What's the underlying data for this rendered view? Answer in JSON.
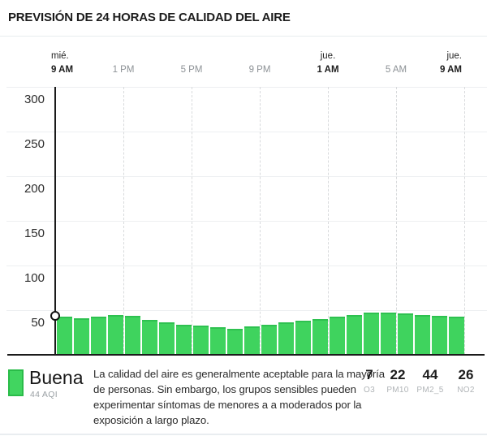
{
  "header": {
    "title": "PREVISIÓN DE 24 HORAS DE CALIDAD DEL AIRE"
  },
  "chart_data": {
    "type": "bar",
    "title": "PREVISIÓN DE 24 HORAS DE CALIDAD DEL AIRE",
    "unit": "AQI",
    "ylim": [
      0,
      300
    ],
    "yticks": [
      50,
      100,
      150,
      200,
      250,
      300
    ],
    "grid": "horizontal solid, vertical dashed every 4 hours",
    "bar_color": "#3fd35e",
    "x_ticks": [
      {
        "day": "mié.",
        "time": "9 AM",
        "hour": 0,
        "strong": true
      },
      {
        "day": "",
        "time": "1 PM",
        "hour": 4,
        "strong": false
      },
      {
        "day": "",
        "time": "5 PM",
        "hour": 8,
        "strong": false
      },
      {
        "day": "",
        "time": "9 PM",
        "hour": 12,
        "strong": false
      },
      {
        "day": "jue.",
        "time": "1 AM",
        "hour": 16,
        "strong": true
      },
      {
        "day": "",
        "time": "5 AM",
        "hour": 20,
        "strong": false
      },
      {
        "day": "jue.",
        "time": "9 AM",
        "hour": 24,
        "strong": true
      }
    ],
    "values": [
      43,
      41,
      43,
      45,
      44,
      39,
      36,
      34,
      33,
      31,
      29,
      32,
      34,
      36,
      38,
      40,
      43,
      45,
      47,
      47,
      46,
      45,
      44,
      43
    ],
    "current": {
      "value": 44,
      "hour": 0
    }
  },
  "legend": {
    "category": "Buena",
    "aqi_label": "44 AQI",
    "color": "#41d560",
    "description": "La calidad del aire es generalmente aceptable para la mayoría\nde personas. Sin embargo, los grupos sensibles pueden\nexperimentar síntomas de menores a a moderados por la\nexposición a largo plazo."
  },
  "pollutants": [
    {
      "value": "7",
      "label": "O3"
    },
    {
      "value": "22",
      "label": "PM10"
    },
    {
      "value": "44",
      "label": "PM2_5"
    },
    {
      "value": "26",
      "label": "NO2"
    }
  ]
}
